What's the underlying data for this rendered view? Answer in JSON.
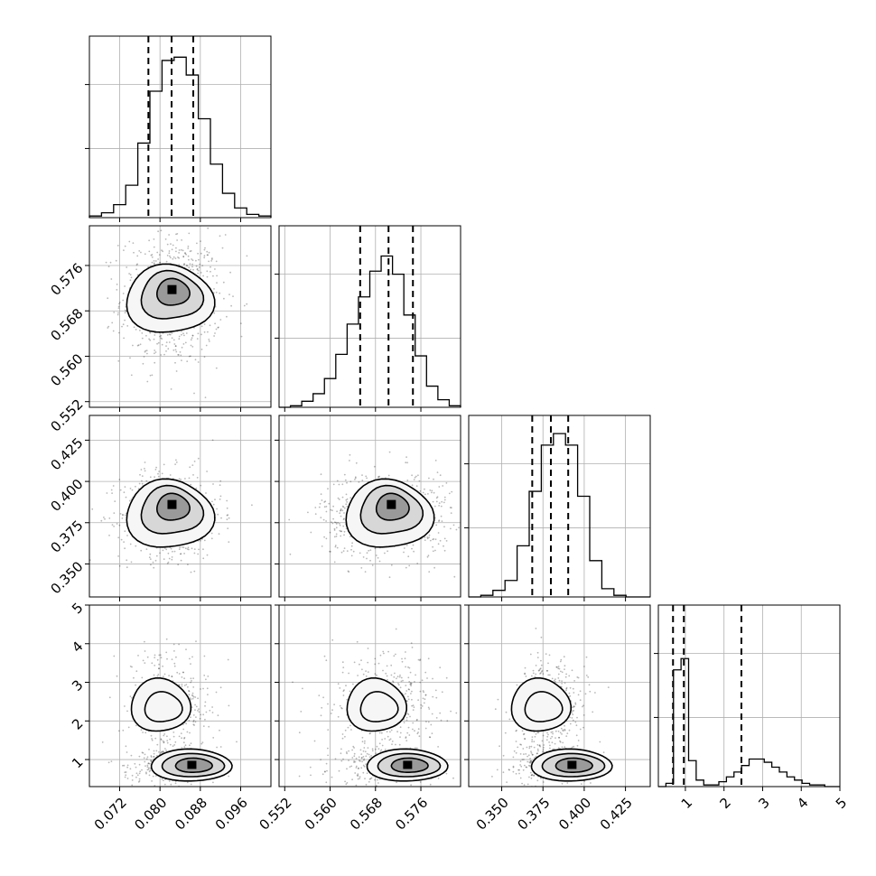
{
  "chart_data": {
    "type": "corner",
    "grid": true,
    "parameters": [
      {
        "range": [
          0.066,
          0.102
        ],
        "ticks": [
          0.072,
          0.08,
          0.088,
          0.096
        ],
        "tick_labels": [
          "0.072",
          "0.080",
          "0.088",
          "0.096"
        ],
        "quantiles": [
          0.0777,
          0.0823,
          0.0866
        ]
      },
      {
        "range": [
          0.551,
          0.583
        ],
        "ticks": [
          0.552,
          0.56,
          0.568,
          0.576
        ],
        "tick_labels": [
          "0.552",
          "0.560",
          "0.568",
          "0.576"
        ],
        "quantiles": [
          0.5653,
          0.5703,
          0.5746
        ]
      },
      {
        "range": [
          0.33,
          0.44
        ],
        "ticks": [
          0.35,
          0.375,
          0.4,
          0.425
        ],
        "tick_labels": [
          "0.350",
          "0.375",
          "0.400",
          "0.425"
        ],
        "quantiles": [
          0.3685,
          0.3798,
          0.3903
        ]
      },
      {
        "range": [
          0.3,
          5.0
        ],
        "ticks": [
          1,
          2,
          3,
          4,
          5
        ],
        "tick_labels": [
          "1",
          "2",
          "3",
          "4",
          "5"
        ],
        "quantiles": [
          0.68,
          0.96,
          2.45
        ]
      }
    ],
    "histograms": [
      [
        1,
        3,
        8,
        20,
        46,
        78,
        97,
        99,
        88,
        61,
        33,
        15,
        6,
        2,
        1
      ],
      [
        0,
        1,
        4,
        9,
        19,
        35,
        55,
        73,
        90,
        100,
        88,
        61,
        34,
        14,
        5,
        1
      ],
      [
        0,
        1,
        4,
        10,
        31,
        64,
        92,
        99,
        92,
        61,
        22,
        5,
        1,
        0,
        0
      ],
      [
        0,
        2,
        72,
        79,
        16,
        4,
        1,
        1,
        3,
        6,
        9,
        13,
        17,
        17,
        15,
        12,
        9,
        6,
        4,
        2,
        1,
        1,
        0,
        0
      ]
    ],
    "hist_max": [
      1.12,
      1.2,
      1.1,
      1.12
    ],
    "x_tick_labels_at": "bottom",
    "y_tick_labels_at": "left"
  }
}
